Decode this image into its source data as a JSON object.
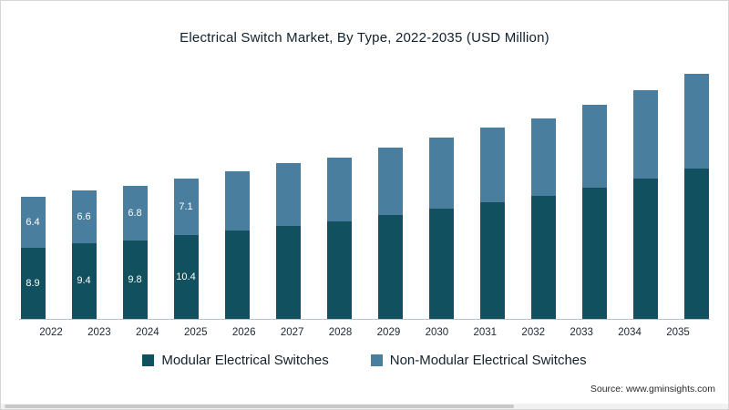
{
  "chart_data": {
    "type": "bar",
    "stacked": true,
    "title": "Electrical Switch Market, By Type, 2022-2035 (USD Million)",
    "categories": [
      "2022",
      "2023",
      "2024",
      "2025",
      "2026",
      "2027",
      "2028",
      "2029",
      "2030",
      "2031",
      "2032",
      "2033",
      "2034",
      "2035"
    ],
    "series": [
      {
        "name": "Modular Electrical Switches",
        "color": "#11505f",
        "values": [
          8.9,
          9.4,
          9.8,
          10.4,
          11.0,
          11.6,
          12.2,
          12.9,
          13.7,
          14.5,
          15.3,
          16.4,
          17.5,
          18.8
        ],
        "labels": [
          "8.9",
          "9.4",
          "9.8",
          "10.4",
          null,
          null,
          null,
          null,
          null,
          null,
          null,
          null,
          null,
          null
        ]
      },
      {
        "name": "Non-Modular Electrical Switches",
        "color": "#4a7e9e",
        "values": [
          6.4,
          6.6,
          6.8,
          7.1,
          7.4,
          7.8,
          8.0,
          8.4,
          8.9,
          9.3,
          9.7,
          10.3,
          11.0,
          11.8
        ],
        "labels": [
          "6.4",
          "6.6",
          "6.8",
          "7.1",
          null,
          null,
          null,
          null,
          null,
          null,
          null,
          null,
          null,
          null
        ]
      }
    ],
    "ylim": [
      0,
      31
    ],
    "grid": false,
    "legend_position": "bottom"
  },
  "source": "Source: www.gminsights.com"
}
